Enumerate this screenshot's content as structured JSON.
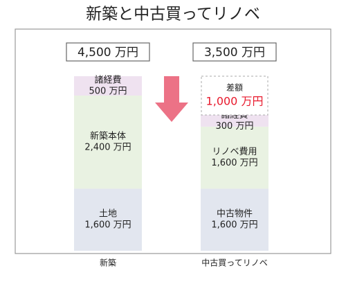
{
  "chart_data": {
    "type": "stacked-bar",
    "title": "新築と中古買ってリノベ",
    "stacks": [
      {
        "category": "新築",
        "total": 4500,
        "total_label": "4,500 万円",
        "segments": [
          {
            "name": "土地",
            "value": 1600,
            "value_label": "1,600 万円",
            "color": "#e2e6ef"
          },
          {
            "name": "新築本体",
            "value": 2400,
            "value_label": "2,400 万円",
            "color": "#e9f2e2"
          },
          {
            "name": "諸経費",
            "value": 500,
            "value_label": "500 万円",
            "color": "#efe2f0"
          }
        ]
      },
      {
        "category": "中古買ってリノベ",
        "total": 3500,
        "total_label": "3,500 万円",
        "segments": [
          {
            "name": "中古物件",
            "value": 1600,
            "value_label": "1,600 万円",
            "color": "#e2e6ef"
          },
          {
            "name": "リノベ費用",
            "value": 1600,
            "value_label": "1,600 万円",
            "color": "#e9f2e2"
          },
          {
            "name": "諸経費",
            "value": 300,
            "value_label": "300 万円",
            "color": "#efe2f0"
          },
          {
            "name": "差額",
            "value": 1000,
            "value_label": "1,000 万円",
            "color": "#ffffff",
            "dashed": true,
            "label_color": "#e8192c"
          }
        ]
      }
    ]
  }
}
